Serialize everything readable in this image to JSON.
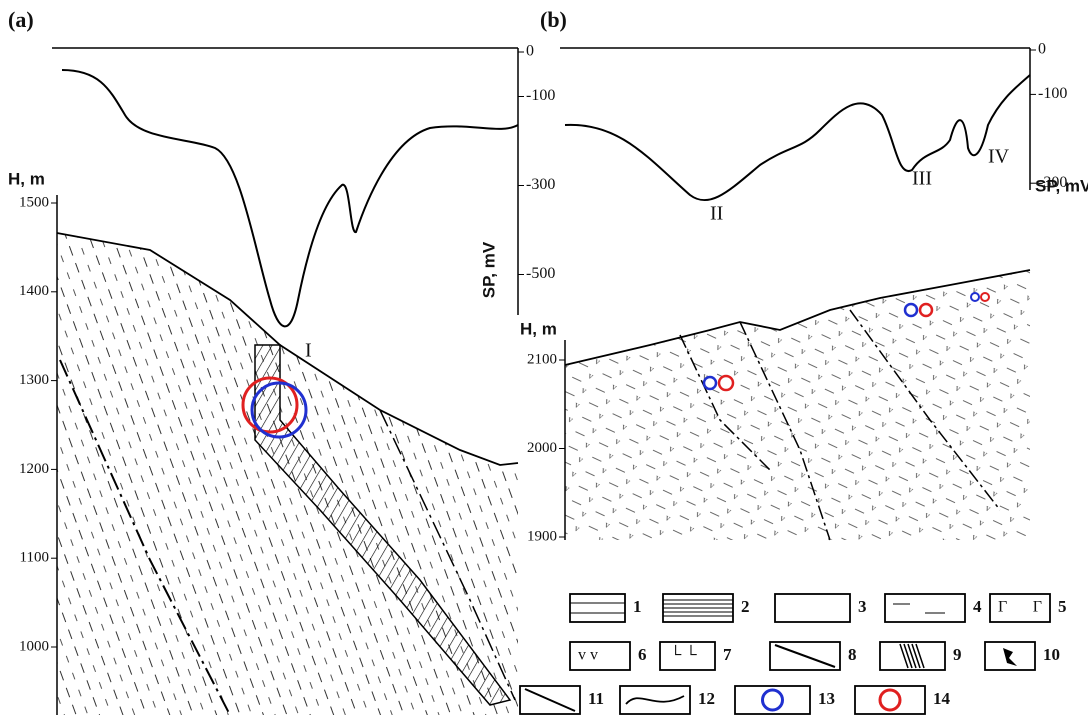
{
  "panels": [
    {
      "label": "(a)",
      "h_axis": {
        "title": "H, m",
        "ticks": [
          1500,
          1400,
          1300,
          1200,
          1100,
          1000
        ]
      },
      "sp_axis": {
        "title": "SP, mV",
        "ticks": [
          0,
          -100,
          -300,
          -500
        ]
      },
      "anomalies": [
        "I"
      ]
    },
    {
      "label": "(b)",
      "h_axis": {
        "title": "H, m",
        "ticks": [
          2100,
          2000,
          1900
        ]
      },
      "sp_axis": {
        "title": "SP, mV",
        "ticks": [
          0,
          -100,
          -300
        ]
      },
      "anomalies": [
        "II",
        "III",
        "IV"
      ]
    }
  ],
  "legend": [
    1,
    2,
    3,
    4,
    5,
    6,
    7,
    8,
    9,
    10,
    11,
    12,
    13,
    14
  ]
}
